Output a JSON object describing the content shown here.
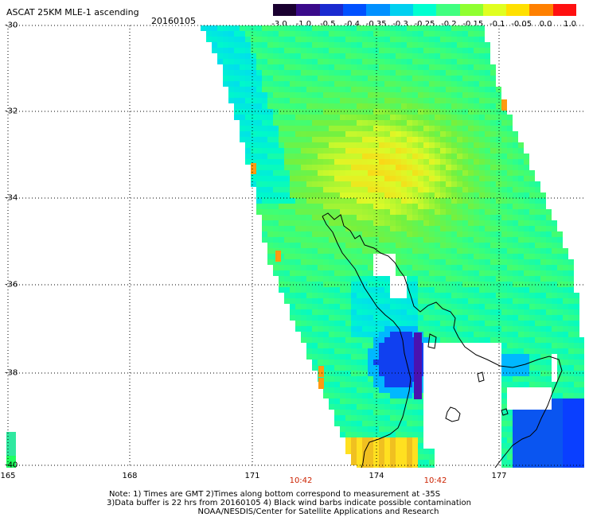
{
  "title": "ASCAT 25KM MLE-1 ascending",
  "date": "20160105",
  "colorbar": {
    "ticks": [
      "-3.0",
      "-1.0",
      "-0.5",
      "-0.4",
      "-0.35",
      "-0.3",
      "-0.25",
      "-0.2",
      "-0.15",
      "-0.1",
      "-0.05",
      "0.0",
      "1.0"
    ],
    "colors": [
      "#1a0030",
      "#3a0a8a",
      "#1a2ad0",
      "#0050ff",
      "#0090ff",
      "#00d0f0",
      "#00ffd0",
      "#40ff80",
      "#90ff30",
      "#e0ff20",
      "#ffe000",
      "#ff8000",
      "#ff1010"
    ]
  },
  "lat_labels": [
    "-30",
    "-32",
    "-34",
    "-36",
    "-38",
    "-40"
  ],
  "lon_labels": [
    "165",
    "168",
    "171",
    "174",
    "177"
  ],
  "time_labels": [
    "10:42",
    "10:42"
  ],
  "notes": [
    "Note: 1) Times are GMT 2)Times along bottom correspond to measurement at -35S",
    "3)Data buffer is 22 hrs from 20160105 4) Black wind barbs indicate possible contamination",
    "NOAA/NESDIS/Center for Satellite Applications and Research"
  ]
}
